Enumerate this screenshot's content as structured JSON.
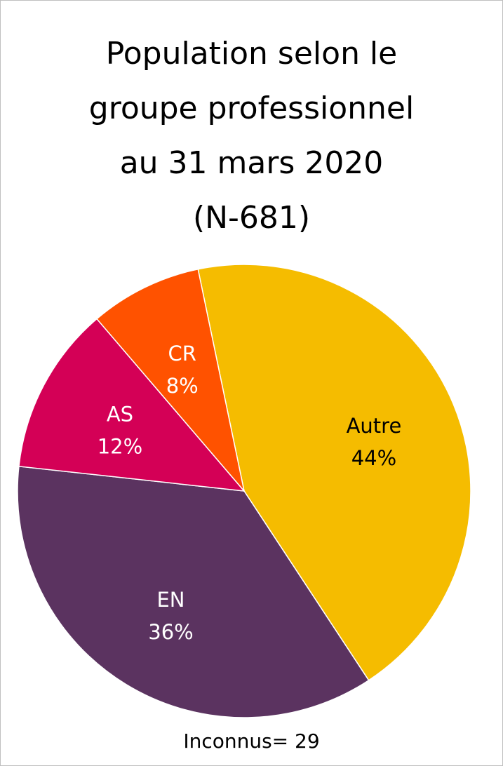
{
  "chart_data": {
    "type": "pie",
    "title": [
      "Population selon le",
      "groupe professionnel",
      "au 31 mars 2020",
      "(N-681)"
    ],
    "slices": [
      {
        "label": "Autre",
        "percent_label": "44%",
        "value": 44,
        "color": "#F5BC00",
        "text_color": "#000000"
      },
      {
        "label": "EN",
        "percent_label": "36%",
        "value": 36,
        "color": "#5B3360",
        "text_color": "#FFFFFF"
      },
      {
        "label": "AS",
        "percent_label": "12%",
        "value": 12,
        "color": "#D40056",
        "text_color": "#FFFFFF"
      },
      {
        "label": "CR",
        "percent_label": "8%",
        "value": 8,
        "color": "#FF5200",
        "text_color": "#FFFFFF"
      }
    ],
    "start_clockwise_from_top": true,
    "footnote": "Inconnus= 29",
    "legend": "none"
  }
}
